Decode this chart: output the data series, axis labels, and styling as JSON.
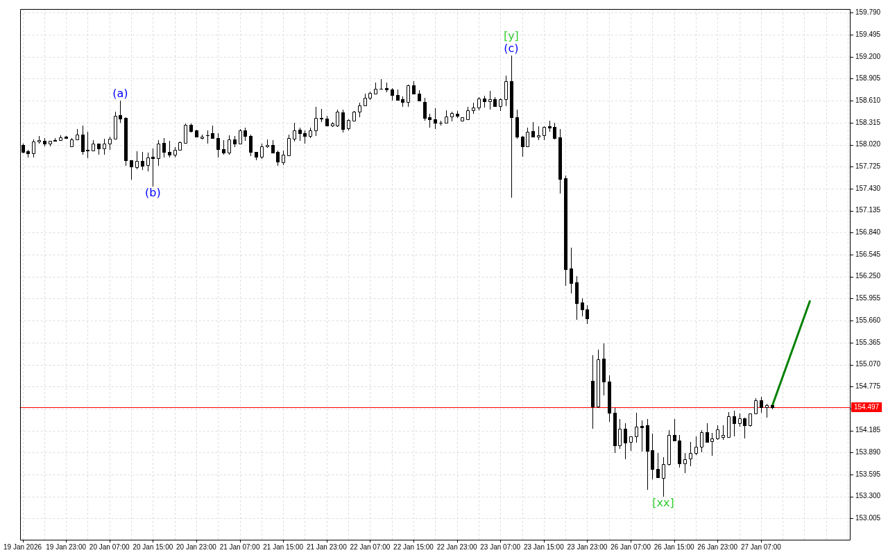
{
  "chart_data": {
    "type": "candlestick",
    "categories": [
      "19 Jan 2026",
      null,
      null,
      null,
      null,
      null,
      null,
      null,
      "19 Jan 23:00",
      null,
      null,
      null,
      null,
      null,
      null,
      null,
      "20 Jan 07:00",
      null,
      null,
      null,
      null,
      null,
      null,
      null,
      "20 Jan 15:00",
      null,
      null,
      null,
      null,
      null,
      null,
      null,
      "20 Jan 23:00",
      null,
      null,
      null,
      null,
      null,
      null,
      null,
      "21 Jan 07:00",
      null,
      null,
      null,
      null,
      null,
      null,
      null,
      "21 Jan 15:00",
      null,
      null,
      null,
      null,
      null,
      null,
      null,
      "21 Jan 23:00",
      null,
      null,
      null,
      null,
      null,
      null,
      null,
      "22 Jan 07:00",
      null,
      null,
      null,
      null,
      null,
      null,
      null,
      "22 Jan 15:00",
      null,
      null,
      null,
      null,
      null,
      null,
      null,
      "22 Jan 23:00",
      null,
      null,
      null,
      null,
      null,
      null,
      null,
      "23 Jan 07:00",
      null,
      null,
      null,
      null,
      null,
      null,
      null,
      "23 Jan 15:00",
      null,
      null,
      null,
      null,
      null,
      null,
      null,
      "23 Jan 23:00",
      null,
      null,
      null,
      null,
      null,
      null,
      null,
      "26 Jan 07:00",
      null,
      null,
      null,
      null,
      null,
      null,
      null,
      "26 Jan 15:00",
      null,
      null,
      null,
      null,
      null,
      null,
      null,
      "26 Jan 23:00",
      null,
      null,
      null,
      null,
      null,
      null,
      null,
      "27 Jan 07:00",
      null,
      null,
      null,
      null,
      null,
      null,
      null,
      null,
      null,
      null,
      null,
      null,
      null,
      null,
      null,
      null
    ],
    "ohlc": [
      [
        158.02,
        158.03,
        157.9,
        157.92
      ],
      [
        157.93,
        157.95,
        157.85,
        157.9
      ],
      [
        157.9,
        158.09,
        157.85,
        158.06
      ],
      [
        158.06,
        158.14,
        158.03,
        158.08
      ],
      [
        158.07,
        158.11,
        158.0,
        158.03
      ],
      [
        158.03,
        158.07,
        158.0,
        158.07
      ],
      [
        158.08,
        158.11,
        158.06,
        158.07
      ],
      [
        158.08,
        158.15,
        158.08,
        158.12
      ],
      [
        158.13,
        158.14,
        158.1,
        158.11
      ],
      [
        158.0,
        158.11,
        158.0,
        158.09
      ],
      [
        158.09,
        158.23,
        158.08,
        158.16
      ],
      [
        158.16,
        158.28,
        157.89,
        157.93
      ],
      [
        157.95,
        158.19,
        157.84,
        157.94
      ],
      [
        157.94,
        158.08,
        157.94,
        158.03
      ],
      [
        158.03,
        158.03,
        157.89,
        157.97
      ],
      [
        157.97,
        158.1,
        157.89,
        158.03
      ],
      [
        158.03,
        158.13,
        157.95,
        158.1
      ],
      [
        158.1,
        158.46,
        158.1,
        158.41
      ],
      [
        158.42,
        158.61,
        158.31,
        158.37
      ],
      [
        158.38,
        158.39,
        157.74,
        157.81
      ],
      [
        157.81,
        157.81,
        157.55,
        157.73
      ],
      [
        157.72,
        157.93,
        157.69,
        157.8
      ],
      [
        157.8,
        157.92,
        157.68,
        157.74
      ],
      [
        157.75,
        157.91,
        157.66,
        157.85
      ],
      [
        157.86,
        157.97,
        157.46,
        157.84
      ],
      [
        157.84,
        158.08,
        157.74,
        158.03
      ],
      [
        158.04,
        158.11,
        157.85,
        157.92
      ],
      [
        157.92,
        158.07,
        157.85,
        157.89
      ],
      [
        157.89,
        157.99,
        157.85,
        157.95
      ],
      [
        157.95,
        158.06,
        157.95,
        158.05
      ],
      [
        158.04,
        158.3,
        158.04,
        158.29
      ],
      [
        158.29,
        158.3,
        158.18,
        158.2
      ],
      [
        158.21,
        158.22,
        158.13,
        158.13
      ],
      [
        158.11,
        158.16,
        158.09,
        158.13
      ],
      [
        158.15,
        158.21,
        158.03,
        158.15
      ],
      [
        158.17,
        158.28,
        158.11,
        158.11
      ],
      [
        158.11,
        158.17,
        157.85,
        157.96
      ],
      [
        157.96,
        158.08,
        157.89,
        157.91
      ],
      [
        157.91,
        158.15,
        157.89,
        158.09
      ],
      [
        158.09,
        158.14,
        157.99,
        158.03
      ],
      [
        158.03,
        158.23,
        158.03,
        158.21
      ],
      [
        158.21,
        158.25,
        158.07,
        158.14
      ],
      [
        158.14,
        158.16,
        157.87,
        157.92
      ],
      [
        157.92,
        157.92,
        157.81,
        157.86
      ],
      [
        157.86,
        158.03,
        157.83,
        158.0
      ],
      [
        158.0,
        158.09,
        157.98,
        158.02
      ],
      [
        158.02,
        158.08,
        157.91,
        157.91
      ],
      [
        157.92,
        157.94,
        157.74,
        157.79
      ],
      [
        157.78,
        157.94,
        157.75,
        157.89
      ],
      [
        157.88,
        158.16,
        157.88,
        158.11
      ],
      [
        158.1,
        158.31,
        158.06,
        158.21
      ],
      [
        158.22,
        158.25,
        158.07,
        158.17
      ],
      [
        158.17,
        158.21,
        158.03,
        158.14
      ],
      [
        158.14,
        158.25,
        158.11,
        158.21
      ],
      [
        158.21,
        158.53,
        158.14,
        158.38
      ],
      [
        158.38,
        158.5,
        158.32,
        158.37
      ],
      [
        158.37,
        158.41,
        158.27,
        158.28
      ],
      [
        158.28,
        158.32,
        158.26,
        158.3
      ],
      [
        158.28,
        158.49,
        158.26,
        158.46
      ],
      [
        158.45,
        158.49,
        158.18,
        158.23
      ],
      [
        158.24,
        158.36,
        158.21,
        158.35
      ],
      [
        158.34,
        158.47,
        158.33,
        158.46
      ],
      [
        158.46,
        158.58,
        158.39,
        158.55
      ],
      [
        158.55,
        158.7,
        158.55,
        158.65
      ],
      [
        158.65,
        158.73,
        158.62,
        158.71
      ],
      [
        158.7,
        158.85,
        158.7,
        158.77
      ],
      [
        158.77,
        158.9,
        158.76,
        158.77
      ],
      [
        158.78,
        158.85,
        158.72,
        158.76
      ],
      [
        158.76,
        158.78,
        158.61,
        158.69
      ],
      [
        158.69,
        158.76,
        158.62,
        158.62
      ],
      [
        158.63,
        158.67,
        158.53,
        158.59
      ],
      [
        158.59,
        158.83,
        158.53,
        158.82
      ],
      [
        158.82,
        158.87,
        158.7,
        158.7
      ],
      [
        158.7,
        158.75,
        158.61,
        158.61
      ],
      [
        158.59,
        158.65,
        158.34,
        158.38
      ],
      [
        158.39,
        158.43,
        158.25,
        158.36
      ],
      [
        158.36,
        158.51,
        158.23,
        158.31
      ],
      [
        158.31,
        158.34,
        158.28,
        158.31
      ],
      [
        158.31,
        158.48,
        158.3,
        158.4
      ],
      [
        158.4,
        158.46,
        158.33,
        158.44
      ],
      [
        158.43,
        158.47,
        158.38,
        158.41
      ],
      [
        158.34,
        158.39,
        158.33,
        158.39
      ],
      [
        158.36,
        158.53,
        158.35,
        158.48
      ],
      [
        158.48,
        158.58,
        158.43,
        158.52
      ],
      [
        158.52,
        158.66,
        158.48,
        158.64
      ],
      [
        158.64,
        158.68,
        158.52,
        158.6
      ],
      [
        158.6,
        158.74,
        158.49,
        158.63
      ],
      [
        158.63,
        158.66,
        158.53,
        158.54
      ],
      [
        158.54,
        158.64,
        158.47,
        158.63
      ],
      [
        158.63,
        158.95,
        158.54,
        158.87
      ],
      [
        158.87,
        159.22,
        157.31,
        158.39
      ],
      [
        158.39,
        158.49,
        158.1,
        158.13
      ],
      [
        158.13,
        158.14,
        157.86,
        158.0
      ],
      [
        158.0,
        158.25,
        157.99,
        158.19
      ],
      [
        158.2,
        158.32,
        158.13,
        158.13
      ],
      [
        158.13,
        158.27,
        158.08,
        158.15
      ],
      [
        158.15,
        158.27,
        158.08,
        158.26
      ],
      [
        158.27,
        158.34,
        158.19,
        158.25
      ],
      [
        158.26,
        158.31,
        158.09,
        158.11
      ],
      [
        158.12,
        158.23,
        157.36,
        157.56
      ],
      [
        157.57,
        157.61,
        156.13,
        156.35
      ],
      [
        156.36,
        156.64,
        156.02,
        156.16
      ],
      [
        156.17,
        156.26,
        155.67,
        155.89
      ],
      [
        155.9,
        155.96,
        155.72,
        155.81
      ],
      [
        155.81,
        155.87,
        155.61,
        155.69
      ],
      [
        154.85,
        155.2,
        154.21,
        154.51
      ],
      [
        154.51,
        155.27,
        154.49,
        155.14
      ],
      [
        155.15,
        155.35,
        154.66,
        154.84
      ],
      [
        154.84,
        154.93,
        154.3,
        154.42
      ],
      [
        154.42,
        154.49,
        153.88,
        153.99
      ],
      [
        153.99,
        154.34,
        153.94,
        154.21
      ],
      [
        154.21,
        154.28,
        153.8,
        154.02
      ],
      [
        154.03,
        154.11,
        153.91,
        154.11
      ],
      [
        154.11,
        154.42,
        154.02,
        154.24
      ],
      [
        154.25,
        154.32,
        153.9,
        154.23
      ],
      [
        154.26,
        154.34,
        153.39,
        153.91
      ],
      [
        153.92,
        154.14,
        153.53,
        153.67
      ],
      [
        153.67,
        153.88,
        153.56,
        153.56
      ],
      [
        153.55,
        153.83,
        153.3,
        153.73
      ],
      [
        153.73,
        154.19,
        153.72,
        154.13
      ],
      [
        154.13,
        154.34,
        154.04,
        154.05
      ],
      [
        154.05,
        154.13,
        153.69,
        153.74
      ],
      [
        153.74,
        153.88,
        153.61,
        153.8
      ],
      [
        153.81,
        154.03,
        153.71,
        153.88
      ],
      [
        153.88,
        154.11,
        153.86,
        153.97
      ],
      [
        153.97,
        154.19,
        153.89,
        154.16
      ],
      [
        154.16,
        154.28,
        154.02,
        154.03
      ],
      [
        154.04,
        154.15,
        153.85,
        154.08
      ],
      [
        154.08,
        154.26,
        154.06,
        154.2
      ],
      [
        154.1,
        154.26,
        154.06,
        154.13
      ],
      [
        154.1,
        154.43,
        154.09,
        154.38
      ],
      [
        154.38,
        154.45,
        154.11,
        154.28
      ],
      [
        154.28,
        154.41,
        154.24,
        154.35
      ],
      [
        154.35,
        154.36,
        154.08,
        154.26
      ],
      [
        154.26,
        154.41,
        154.24,
        154.41
      ],
      [
        154.41,
        154.62,
        154.41,
        154.59
      ],
      [
        154.59,
        154.64,
        154.42,
        154.5
      ],
      [
        154.5,
        154.54,
        154.36,
        154.53
      ],
      [
        154.53,
        154.53,
        154.47,
        154.497
      ],
      null,
      null,
      null,
      null,
      null,
      null,
      null,
      null,
      null,
      null,
      null,
      null,
      null,
      null
    ],
    "series": [
      {
        "type": "line",
        "color": "#008000",
        "values": [
          null,
          null,
          null,
          null,
          null,
          null,
          null,
          null,
          null,
          null,
          null,
          null,
          null,
          null,
          null,
          null,
          null,
          null,
          null,
          null,
          null,
          null,
          null,
          null,
          null,
          null,
          null,
          null,
          null,
          null,
          null,
          null,
          null,
          null,
          null,
          null,
          null,
          null,
          null,
          null,
          null,
          null,
          null,
          null,
          null,
          null,
          null,
          null,
          null,
          null,
          null,
          null,
          null,
          null,
          null,
          null,
          null,
          null,
          null,
          null,
          null,
          null,
          null,
          null,
          null,
          null,
          null,
          null,
          null,
          null,
          null,
          null,
          null,
          null,
          null,
          null,
          null,
          null,
          null,
          null,
          null,
          null,
          null,
          null,
          null,
          null,
          null,
          null,
          null,
          null,
          null,
          null,
          null,
          null,
          null,
          null,
          null,
          null,
          null,
          null,
          null,
          null,
          null,
          null,
          null,
          null,
          null,
          null,
          null,
          null,
          null,
          null,
          null,
          null,
          null,
          null,
          null,
          null,
          null,
          null,
          null,
          null,
          null,
          null,
          null,
          null,
          null,
          null,
          null,
          null,
          null,
          null,
          null,
          null,
          null,
          null,
          null,
          null,
          154.5,
          null,
          null,
          null,
          null,
          null,
          null,
          155.92,
          null,
          null,
          null,
          null,
          null,
          null,
          null
        ]
      }
    ],
    "ylim": [
      152.72,
      159.84
    ],
    "yticks": [
      153.005,
      {
        "value": 153.3,
        "label": "153.300"
      },
      153.595,
      {
        "value": 153.89,
        "label": "153.890"
      },
      154.185,
      {
        "value": 154.48,
        "label": null
      },
      154.775,
      {
        "value": 155.07,
        "label": "155.070"
      },
      155.365,
      {
        "value": 155.66,
        "label": "155.660"
      },
      155.955,
      {
        "value": 156.25,
        "label": "156.250"
      },
      156.545,
      {
        "value": 156.84,
        "label": "156.840"
      },
      157.135,
      {
        "value": 157.43,
        "label": "157.430"
      },
      157.725,
      {
        "value": 158.02,
        "label": "158.020"
      },
      158.315,
      {
        "value": 158.61,
        "label": "158.610"
      },
      158.905,
      {
        "value": 159.2,
        "label": "159.200"
      },
      159.495,
      {
        "value": 159.79,
        "label": "159.790"
      }
    ],
    "grid": true,
    "ref_lines": [
      {
        "axis": "y",
        "value": 154.497,
        "label": "154.497",
        "color": "#ff0000"
      }
    ],
    "annotations": [
      {
        "text": "(a)",
        "y": 158.61
      },
      {
        "text": "(b)",
        "y": 157.46
      },
      {
        "text": "(c)",
        "y": 159.22
      },
      {
        "text": "[y]",
        "y": 159.22
      },
      {
        "text": "[xx]",
        "y": 153.3
      }
    ]
  }
}
